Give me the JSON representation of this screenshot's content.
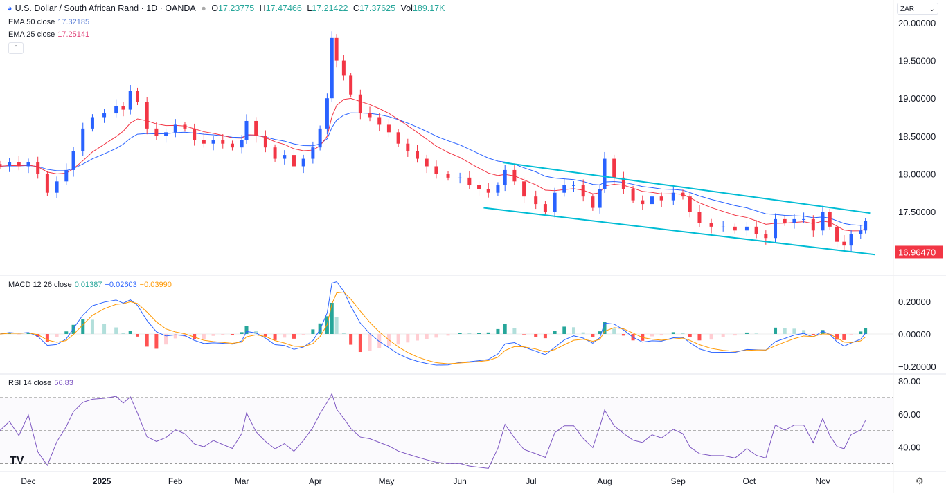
{
  "header": {
    "title": "U.S. Dollar / South African Rand · 1D · OANDA",
    "open": "17.23775",
    "high": "17.47466",
    "low": "17.21422",
    "close": "17.37625",
    "volume": "189.17K",
    "o_label": "O",
    "h_label": "H",
    "l_label": "L",
    "c_label": "C",
    "v_label": "Vol",
    "currency": "ZAR"
  },
  "indicators": {
    "ema50": {
      "label": "EMA 50 close",
      "value": "17.32185",
      "color": "#5b7fd6"
    },
    "ema25": {
      "label": "EMA 25 close",
      "value": "17.25141",
      "color": "#e0457b"
    },
    "macd": {
      "label": "MACD 12 26 close",
      "hist": "0.01387",
      "macd": "−0.02603",
      "signal": "−0.03990"
    },
    "rsi": {
      "label": "RSI 14 close",
      "value": "56.83"
    }
  },
  "colors": {
    "up": "#2962ff",
    "down": "#f23645",
    "channel": "#00bcd4",
    "macd_line": "#2962ff",
    "signal_line": "#ff9800",
    "rsi_line": "#7e57c2"
  },
  "chart_data": {
    "type": "candlestick",
    "price_axis": {
      "ticks": [
        "20.00000",
        "19.50000",
        "19.00000",
        "18.50000",
        "18.00000",
        "17.50000"
      ],
      "ylim": [
        16.85,
        20.1
      ]
    },
    "macd_axis": {
      "ticks": [
        "0.20000",
        "0.00000",
        "−0.20000"
      ]
    },
    "rsi_axis": {
      "ticks": [
        "80.00",
        "60.00",
        "40.00"
      ],
      "bands": [
        70,
        50,
        30
      ]
    },
    "x_ticks": [
      {
        "label": "Dec",
        "date": "2024-12-01"
      },
      {
        "label": "2025",
        "date": "2025-01-01",
        "bold": true
      },
      {
        "label": "Feb",
        "date": "2025-02-01"
      },
      {
        "label": "Mar",
        "date": "2025-03-01"
      },
      {
        "label": "Apr",
        "date": "2025-04-01"
      },
      {
        "label": "May",
        "date": "2025-05-01"
      },
      {
        "label": "Jun",
        "date": "2025-06-01"
      },
      {
        "label": "Jul",
        "date": "2025-07-01"
      },
      {
        "label": "Aug",
        "date": "2025-08-01"
      },
      {
        "label": "Sep",
        "date": "2025-09-01"
      },
      {
        "label": "Oct",
        "date": "2025-10-01"
      },
      {
        "label": "Nov",
        "date": "2025-11-01"
      }
    ],
    "support_label": "16.96470",
    "support": 16.9647,
    "last_close": 17.37625,
    "channel": {
      "upper": [
        [
          "2025-06-19",
          18.15
        ],
        [
          "2025-11-21",
          17.48
        ]
      ],
      "lower": [
        [
          "2025-06-11",
          17.55
        ],
        [
          "2025-11-23",
          16.93
        ]
      ]
    },
    "closes": [
      [
        "2024-11-19",
        18.1
      ],
      [
        "2024-11-23",
        18.15
      ],
      [
        "2024-11-27",
        18.1
      ],
      [
        "2024-12-01",
        18.15
      ],
      [
        "2024-12-05",
        18.0
      ],
      [
        "2024-12-09",
        17.75
      ],
      [
        "2024-12-13",
        17.9
      ],
      [
        "2024-12-17",
        18.05
      ],
      [
        "2024-12-20",
        18.3
      ],
      [
        "2024-12-24",
        18.6
      ],
      [
        "2024-12-28",
        18.75
      ],
      [
        "2025-01-02",
        18.8
      ],
      [
        "2025-01-07",
        18.9
      ],
      [
        "2025-01-10",
        18.85
      ],
      [
        "2025-01-13",
        19.1
      ],
      [
        "2025-01-16",
        18.95
      ],
      [
        "2025-01-20",
        18.6
      ],
      [
        "2025-01-24",
        18.5
      ],
      [
        "2025-01-28",
        18.55
      ],
      [
        "2025-02-01",
        18.65
      ],
      [
        "2025-02-05",
        18.6
      ],
      [
        "2025-02-09",
        18.45
      ],
      [
        "2025-02-13",
        18.4
      ],
      [
        "2025-02-17",
        18.45
      ],
      [
        "2025-02-21",
        18.4
      ],
      [
        "2025-02-25",
        18.35
      ],
      [
        "2025-03-01",
        18.45
      ],
      [
        "2025-03-03",
        18.7
      ],
      [
        "2025-03-07",
        18.5
      ],
      [
        "2025-03-11",
        18.35
      ],
      [
        "2025-03-15",
        18.2
      ],
      [
        "2025-03-19",
        18.25
      ],
      [
        "2025-03-23",
        18.1
      ],
      [
        "2025-03-27",
        18.2
      ],
      [
        "2025-03-31",
        18.35
      ],
      [
        "2025-04-03",
        18.6
      ],
      [
        "2025-04-06",
        19.0
      ],
      [
        "2025-04-08",
        19.8
      ],
      [
        "2025-04-10",
        19.5
      ],
      [
        "2025-04-13",
        19.3
      ],
      [
        "2025-04-16",
        19.05
      ],
      [
        "2025-04-20",
        18.8
      ],
      [
        "2025-04-24",
        18.75
      ],
      [
        "2025-04-28",
        18.65
      ],
      [
        "2025-05-02",
        18.55
      ],
      [
        "2025-05-06",
        18.4
      ],
      [
        "2025-05-10",
        18.3
      ],
      [
        "2025-05-14",
        18.2
      ],
      [
        "2025-05-18",
        18.1
      ],
      [
        "2025-05-22",
        18.0
      ],
      [
        "2025-05-27",
        17.95
      ],
      [
        "2025-06-01",
        17.95
      ],
      [
        "2025-06-05",
        17.85
      ],
      [
        "2025-06-09",
        17.8
      ],
      [
        "2025-06-13",
        17.75
      ],
      [
        "2025-06-17",
        17.85
      ],
      [
        "2025-06-20",
        18.05
      ],
      [
        "2025-06-24",
        17.9
      ],
      [
        "2025-06-28",
        17.7
      ],
      [
        "2025-07-03",
        17.6
      ],
      [
        "2025-07-07",
        17.5
      ],
      [
        "2025-07-11",
        17.75
      ],
      [
        "2025-07-15",
        17.85
      ],
      [
        "2025-07-19",
        17.85
      ],
      [
        "2025-07-23",
        17.7
      ],
      [
        "2025-07-27",
        17.55
      ],
      [
        "2025-07-30",
        17.8
      ],
      [
        "2025-08-01",
        18.2
      ],
      [
        "2025-08-05",
        17.95
      ],
      [
        "2025-08-09",
        17.8
      ],
      [
        "2025-08-13",
        17.65
      ],
      [
        "2025-08-17",
        17.6
      ],
      [
        "2025-08-21",
        17.7
      ],
      [
        "2025-08-25",
        17.65
      ],
      [
        "2025-08-30",
        17.75
      ],
      [
        "2025-09-03",
        17.7
      ],
      [
        "2025-09-06",
        17.5
      ],
      [
        "2025-09-10",
        17.35
      ],
      [
        "2025-09-15",
        17.3
      ],
      [
        "2025-09-20",
        17.3
      ],
      [
        "2025-09-25",
        17.25
      ],
      [
        "2025-09-30",
        17.3
      ],
      [
        "2025-10-04",
        17.2
      ],
      [
        "2025-10-08",
        17.15
      ],
      [
        "2025-10-12",
        17.4
      ],
      [
        "2025-10-16",
        17.35
      ],
      [
        "2025-10-20",
        17.4
      ],
      [
        "2025-10-24",
        17.4
      ],
      [
        "2025-10-28",
        17.25
      ],
      [
        "2025-11-01",
        17.5
      ],
      [
        "2025-11-04",
        17.3
      ],
      [
        "2025-11-07",
        17.1
      ],
      [
        "2025-11-10",
        17.05
      ],
      [
        "2025-11-13",
        17.2
      ],
      [
        "2025-11-17",
        17.25
      ],
      [
        "2025-11-19",
        17.376
      ]
    ]
  }
}
